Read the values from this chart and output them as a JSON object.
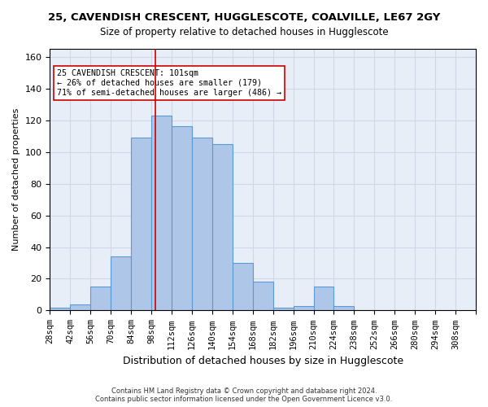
{
  "title_line1": "25, CAVENDISH CRESCENT, HUGGLESCOTE, COALVILLE, LE67 2GY",
  "title_line2": "Size of property relative to detached houses in Hugglescote",
  "xlabel": "Distribution of detached houses by size in Hugglescote",
  "ylabel": "Number of detached properties",
  "footnote": "Contains HM Land Registry data © Crown copyright and database right 2024.\nContains public sector information licensed under the Open Government Licence v3.0.",
  "bin_labels": [
    "28sqm",
    "42sqm",
    "56sqm",
    "70sqm",
    "84sqm",
    "98sqm",
    "112sqm",
    "126sqm",
    "140sqm",
    "154sqm",
    "168sqm",
    "182sqm",
    "196sqm",
    "210sqm",
    "224sqm",
    "238sqm",
    "252sqm",
    "266sqm",
    "280sqm",
    "294sqm",
    "308sqm"
  ],
  "bin_edges": [
    28,
    42,
    56,
    70,
    84,
    98,
    112,
    126,
    140,
    154,
    168,
    182,
    196,
    210,
    224,
    238,
    252,
    266,
    280,
    294,
    308
  ],
  "bar_heights": [
    2,
    4,
    15,
    34,
    109,
    123,
    116,
    109,
    105,
    30,
    18,
    2,
    3,
    15,
    3,
    0,
    0,
    0,
    0,
    0
  ],
  "bar_color": "#aec6e8",
  "bar_edge_color": "#5b9bd5",
  "ylim": [
    0,
    165
  ],
  "yticks": [
    0,
    20,
    40,
    60,
    80,
    100,
    120,
    140,
    160
  ],
  "property_size": 101,
  "property_line_color": "#cc0000",
  "annotation_text": "25 CAVENDISH CRESCENT: 101sqm\n← 26% of detached houses are smaller (179)\n71% of semi-detached houses are larger (486) →",
  "annotation_box_color": "#ffffff",
  "annotation_box_edge_color": "#cc0000",
  "grid_color": "#d0d8e8",
  "background_color": "#e8eef8"
}
